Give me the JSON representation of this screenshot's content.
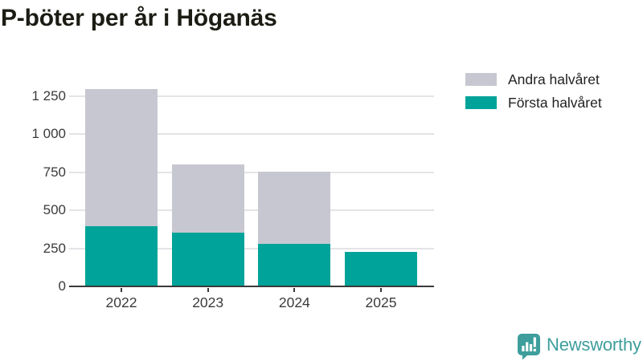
{
  "title": "P-böter per år i Höganäs",
  "background_color": "#ffffff",
  "chart_data": {
    "type": "bar",
    "stacked": true,
    "title": "P-böter per år i Höganäs",
    "xlabel": "",
    "ylabel": "",
    "categories": [
      "2022",
      "2023",
      "2024",
      "2025"
    ],
    "series": [
      {
        "name": "Första halvåret",
        "color": "#00a39a",
        "values": [
          395,
          355,
          280,
          225
        ]
      },
      {
        "name": "Andra halvåret",
        "color": "#c7c7d1",
        "values": [
          900,
          445,
          475,
          0
        ]
      }
    ],
    "totals": [
      1295,
      800,
      755,
      225
    ],
    "yticks": [
      0,
      250,
      500,
      750,
      1000,
      1250
    ],
    "ytick_labels": [
      "0",
      "250",
      "500",
      "750",
      "1 000",
      "1 250"
    ],
    "ylim": [
      0,
      1430
    ],
    "grid": "horizontal",
    "gridline_color": "#e4e4e8",
    "axis_color": "#3a3a3a",
    "tick_label_color": "#3b3b3b",
    "legend_position": "top-right"
  },
  "legend": {
    "items": [
      {
        "label": "Andra halvåret",
        "color": "#c7c7d1"
      },
      {
        "label": "Första halvåret",
        "color": "#00a39a"
      }
    ]
  },
  "footer": {
    "brand": "Newsworthy",
    "brand_color": "#3d9e9b",
    "logo_icon": "newsworthy-chart-speech-bubble-icon"
  }
}
